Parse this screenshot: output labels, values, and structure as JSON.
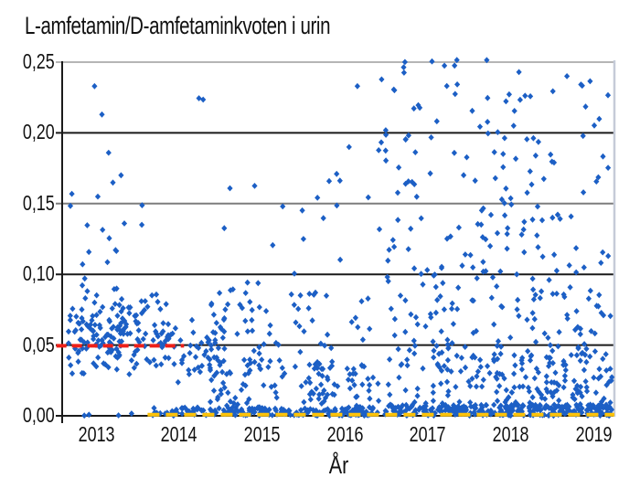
{
  "page": {
    "background": "#ffffff"
  },
  "chart_data": {
    "type": "scatter",
    "title": "L-amfetamin/D-amfetaminkvoten i urin",
    "xlabel": "År",
    "ylabel": "",
    "xlim": [
      2012.59,
      2019.25
    ],
    "ylim": [
      0,
      0.25
    ],
    "grid": true,
    "legend": "none",
    "marker": "diamond",
    "point_color": "#1c5fc5",
    "x_ticks": [
      {
        "label": "2013",
        "value": 2013
      },
      {
        "label": "2014",
        "value": 2014
      },
      {
        "label": "2015",
        "value": 2015
      },
      {
        "label": "2016",
        "value": 2016
      },
      {
        "label": "2017",
        "value": 2017
      },
      {
        "label": "2018",
        "value": 2018
      },
      {
        "label": "2019",
        "value": 2019
      }
    ],
    "y_ticks": [
      {
        "label": "0,00",
        "value": 0.0,
        "grid_color": "#1a1a1a"
      },
      {
        "label": "0,05",
        "value": 0.05,
        "grid_color": "#1a1a1a"
      },
      {
        "label": "0,10",
        "value": 0.1,
        "grid_color": "#1a1a1a"
      },
      {
        "label": "0,15",
        "value": 0.15,
        "grid_color": "#7d7d7d"
      },
      {
        "label": "0,20",
        "value": 0.2,
        "grid_color": "#1a1a1a"
      },
      {
        "label": "0,25",
        "value": 0.25,
        "grid_color": "#b5b5b5"
      }
    ],
    "borders": {
      "axis_color": "#1a1a1a",
      "right_color": "#c5cbd8"
    },
    "seed": 20130419,
    "clusters": [
      {
        "name": "2013-main-cloud",
        "x": [
          2012.66,
          2013.9
        ],
        "n": 175,
        "dist": "normal",
        "mean": 0.057,
        "sd": 0.014,
        "clip": [
          0.028,
          0.096
        ],
        "bias": 0
      },
      {
        "name": "2013-upper",
        "x": [
          2012.68,
          2013.7
        ],
        "n": 13,
        "dist": "uniform",
        "y": [
          0.097,
          0.165
        ],
        "bias": 0
      },
      {
        "name": "2013-zeros",
        "x": [
          2012.72,
          2013.5
        ],
        "n": 4,
        "dist": "uniform",
        "y": [
          0.0,
          0.002
        ],
        "bias": 0
      },
      {
        "name": "2014-declining",
        "x": [
          2013.9,
          2014.55
        ],
        "n": 42,
        "dist": "normal",
        "mean": 0.046,
        "sd": 0.011,
        "clip": [
          0.022,
          0.078
        ],
        "bias": 0
      },
      {
        "name": "2014-2016-zero-band",
        "x": [
          2013.6,
          2016.35
        ],
        "n": 185,
        "dist": "uniform",
        "y": [
          0.0,
          0.006
        ],
        "bias": 0.25
      },
      {
        "name": "2014-2016-low",
        "x": [
          2014.35,
          2016.35
        ],
        "n": 115,
        "dist": "uniform",
        "y": [
          0.006,
          0.04
        ],
        "bias": 0
      },
      {
        "name": "2014-2016-mid",
        "x": [
          2014.35,
          2016.35
        ],
        "n": 60,
        "dist": "uniform",
        "y": [
          0.04,
          0.09
        ],
        "bias": 0
      },
      {
        "name": "2014-2016-upper",
        "x": [
          2014.5,
          2016.35
        ],
        "n": 15,
        "dist": "uniform",
        "y": [
          0.09,
          0.168
        ],
        "bias": 0
      },
      {
        "name": "2016-2019-zero-band",
        "x": [
          2016.35,
          2019.22
        ],
        "n": 285,
        "dist": "uniform",
        "y": [
          0.0,
          0.008
        ],
        "bias": 0.3
      },
      {
        "name": "2016-2019-low",
        "x": [
          2016.35,
          2019.22
        ],
        "n": 190,
        "dist": "uniform",
        "y": [
          0.008,
          0.05
        ],
        "bias": 0.15
      },
      {
        "name": "2016-2019-mid",
        "x": [
          2016.35,
          2019.22
        ],
        "n": 120,
        "dist": "uniform",
        "y": [
          0.05,
          0.12
        ],
        "bias": 0
      },
      {
        "name": "2016-2019-high",
        "x": [
          2016.35,
          2019.22
        ],
        "n": 82,
        "dist": "uniform",
        "y": [
          0.12,
          0.2
        ],
        "bias": 0
      },
      {
        "name": "2016-2019-top",
        "x": [
          2016.4,
          2019.2
        ],
        "n": 38,
        "dist": "uniform",
        "y": [
          0.2,
          0.252
        ],
        "bias": 0
      }
    ],
    "outlier_points": [
      [
        2012.98,
        0.233
      ],
      [
        2013.07,
        0.213
      ],
      [
        2013.15,
        0.186
      ],
      [
        2013.02,
        0.155
      ],
      [
        2013.3,
        0.17
      ],
      [
        2013.34,
        0.136
      ],
      [
        2013.55,
        0.135
      ],
      [
        2014.24,
        0.2245
      ],
      [
        2014.29,
        0.2235
      ],
      [
        2015.25,
        0.148
      ],
      [
        2015.5,
        0.125
      ],
      [
        2015.9,
        0.171
      ],
      [
        2016.05,
        0.19
      ],
      [
        2016.15,
        0.233
      ],
      [
        2017.05,
        0.2505
      ],
      [
        2017.2,
        0.2475
      ],
      [
        2017.35,
        0.2515
      ]
    ],
    "reference_lines": [
      {
        "name": "red-dashed-line",
        "value": 0.0495,
        "x_start": 2012.52,
        "x_end": 2014.06,
        "color": "#ee2019",
        "dash": "11,6",
        "width": 4
      },
      {
        "name": "yellow-dashed-line",
        "value": 0.0008,
        "x_start": 2013.62,
        "x_end": 2019.25,
        "color": "#fdc30a",
        "dash": "13,7",
        "width": 4
      }
    ]
  }
}
